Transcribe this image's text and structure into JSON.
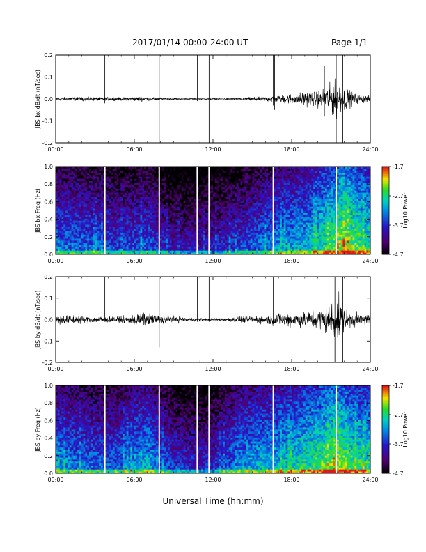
{
  "header": {
    "title": "2017/01/14  00:00-24:00 UT",
    "page": "Page 1/1"
  },
  "x_axis_label": "Universal Time (hh:mm)",
  "chart_data": [
    {
      "type": "line",
      "ylabel": "JBS bx dB/dt (nT/sec)",
      "xlim": [
        0,
        24
      ],
      "ylim": [
        -0.2,
        0.2
      ],
      "xticks": [
        {
          "v": 0,
          "t": "00:00"
        },
        {
          "v": 6,
          "t": "06:00"
        },
        {
          "v": 12,
          "t": "12:00"
        },
        {
          "v": 18,
          "t": "18:00"
        },
        {
          "v": 24,
          "t": "24:00"
        }
      ],
      "yticks": [
        {
          "v": -0.2,
          "t": "-0.2"
        },
        {
          "v": -0.1,
          "t": "-0.1"
        },
        {
          "v": 0,
          "t": "0.0"
        },
        {
          "v": 0.1,
          "t": "0.1"
        },
        {
          "v": 0.2,
          "t": "0.2"
        }
      ],
      "envelope": [
        [
          0,
          0.012
        ],
        [
          3,
          0.012
        ],
        [
          5,
          0.01
        ],
        [
          6.5,
          0.015
        ],
        [
          7.5,
          0.01
        ],
        [
          9,
          0.006
        ],
        [
          11,
          0.004
        ],
        [
          12.5,
          0.004
        ],
        [
          14,
          0.008
        ],
        [
          15,
          0.012
        ],
        [
          16,
          0.018
        ],
        [
          17,
          0.025
        ],
        [
          18,
          0.035
        ],
        [
          19,
          0.045
        ],
        [
          20,
          0.055
        ],
        [
          20.5,
          0.07
        ],
        [
          21,
          0.1
        ],
        [
          21.4,
          0.12
        ],
        [
          21.8,
          0.1
        ],
        [
          22.3,
          0.06
        ],
        [
          23,
          0.03
        ],
        [
          24,
          0.02
        ]
      ],
      "spikes": [
        [
          3.75,
          0.2,
          -0.02
        ],
        [
          7.9,
          0.2,
          -0.2
        ],
        [
          10.8,
          0.2,
          -0.01
        ],
        [
          11.7,
          0.2,
          -0.2
        ],
        [
          16.6,
          0.2,
          -0.03
        ],
        [
          16.7,
          0.2,
          -0.05
        ],
        [
          17.5,
          0.05,
          -0.12
        ],
        [
          20.5,
          0.15,
          -0.08
        ],
        [
          21.4,
          0.2,
          -0.2
        ],
        [
          21.9,
          0.2,
          -0.2
        ]
      ]
    },
    {
      "type": "heatmap",
      "ylabel": "JBS bx Freq (Hz)",
      "xlim": [
        0,
        24
      ],
      "ylim": [
        0,
        1
      ],
      "xticks": [
        {
          "v": 0,
          "t": "00:00"
        },
        {
          "v": 6,
          "t": "06:00"
        },
        {
          "v": 12,
          "t": "12:00"
        },
        {
          "v": 18,
          "t": "18:00"
        },
        {
          "v": 24,
          "t": "24:00"
        }
      ],
      "yticks": [
        {
          "v": 0,
          "t": "0.0"
        },
        {
          "v": 0.2,
          "t": "0.2"
        },
        {
          "v": 0.4,
          "t": "0.4"
        },
        {
          "v": 0.6,
          "t": "0.6"
        },
        {
          "v": 0.8,
          "t": "0.8"
        },
        {
          "v": 1.0,
          "t": "1.0"
        }
      ],
      "colorbar": {
        "label": "Log10 Power",
        "min": -4.7,
        "max": -1.7,
        "ticks": [
          {
            "v": -1.7,
            "t": "-1.7"
          },
          {
            "v": -2.7,
            "t": "-2.7"
          },
          {
            "v": -3.7,
            "t": "-3.7"
          },
          {
            "v": -4.7,
            "t": "-4.7"
          }
        ]
      },
      "gaps": [
        3.75,
        7.9,
        10.8,
        11.7,
        16.6,
        21.4
      ],
      "activity": [
        [
          0,
          0.5
        ],
        [
          3,
          0.45
        ],
        [
          5,
          0.4
        ],
        [
          7,
          0.45
        ],
        [
          9,
          0.3
        ],
        [
          11,
          0.3
        ],
        [
          13,
          0.35
        ],
        [
          15,
          0.45
        ],
        [
          17,
          0.55
        ],
        [
          19,
          0.6
        ],
        [
          21,
          0.75
        ],
        [
          22,
          0.85
        ],
        [
          24,
          0.7
        ]
      ]
    },
    {
      "type": "line",
      "ylabel": "JBS by dB/dt (nT/sec)",
      "xlim": [
        0,
        24
      ],
      "ylim": [
        -0.2,
        0.2
      ],
      "xticks": [
        {
          "v": 0,
          "t": "00:00"
        },
        {
          "v": 6,
          "t": "06:00"
        },
        {
          "v": 12,
          "t": "12:00"
        },
        {
          "v": 18,
          "t": "18:00"
        },
        {
          "v": 24,
          "t": "24:00"
        }
      ],
      "yticks": [
        {
          "v": -0.2,
          "t": "-0.2"
        },
        {
          "v": -0.1,
          "t": "-0.1"
        },
        {
          "v": 0,
          "t": "0.0"
        },
        {
          "v": 0.1,
          "t": "0.1"
        },
        {
          "v": 0.2,
          "t": "0.2"
        }
      ],
      "envelope": [
        [
          0,
          0.03
        ],
        [
          1,
          0.035
        ],
        [
          2,
          0.025
        ],
        [
          3,
          0.02
        ],
        [
          5,
          0.02
        ],
        [
          6.5,
          0.045
        ],
        [
          7,
          0.04
        ],
        [
          8,
          0.03
        ],
        [
          9,
          0.025
        ],
        [
          10,
          0.012
        ],
        [
          12,
          0.008
        ],
        [
          13,
          0.012
        ],
        [
          14,
          0.02
        ],
        [
          15,
          0.025
        ],
        [
          16,
          0.03
        ],
        [
          17,
          0.04
        ],
        [
          18,
          0.045
        ],
        [
          19,
          0.05
        ],
        [
          20,
          0.065
        ],
        [
          20.7,
          0.09
        ],
        [
          21,
          0.12
        ],
        [
          21.4,
          0.15
        ],
        [
          21.8,
          0.12
        ],
        [
          22.3,
          0.06
        ],
        [
          23,
          0.04
        ],
        [
          24,
          0.035
        ]
      ],
      "spikes": [
        [
          3.75,
          0.2,
          -0.01
        ],
        [
          7.9,
          0.2,
          -0.13
        ],
        [
          10.8,
          0.2,
          -0.01
        ],
        [
          11.7,
          0.2,
          -0.01
        ],
        [
          16.6,
          0.2,
          -0.02
        ],
        [
          21.3,
          0.2,
          -0.2
        ],
        [
          21.9,
          0.2,
          -0.2
        ]
      ]
    },
    {
      "type": "heatmap",
      "ylabel": "JBS by Freq (Hz)",
      "xlim": [
        0,
        24
      ],
      "ylim": [
        0,
        1
      ],
      "xticks": [
        {
          "v": 0,
          "t": "00:00"
        },
        {
          "v": 6,
          "t": "06:00"
        },
        {
          "v": 12,
          "t": "12:00"
        },
        {
          "v": 18,
          "t": "18:00"
        },
        {
          "v": 24,
          "t": "24:00"
        }
      ],
      "yticks": [
        {
          "v": 0,
          "t": "0.0"
        },
        {
          "v": 0.2,
          "t": "0.2"
        },
        {
          "v": 0.4,
          "t": "0.4"
        },
        {
          "v": 0.6,
          "t": "0.6"
        },
        {
          "v": 0.8,
          "t": "0.8"
        },
        {
          "v": 1.0,
          "t": "1.0"
        }
      ],
      "colorbar": {
        "label": "Log10 Power",
        "min": -4.7,
        "max": -1.7,
        "ticks": [
          {
            "v": -1.7,
            "t": "-1.7"
          },
          {
            "v": -2.7,
            "t": "-2.7"
          },
          {
            "v": -3.7,
            "t": "-3.7"
          },
          {
            "v": -4.7,
            "t": "-4.7"
          }
        ]
      },
      "gaps": [
        3.75,
        7.9,
        10.8,
        11.7,
        16.6,
        21.4
      ],
      "activity": [
        [
          0,
          0.55
        ],
        [
          2,
          0.5
        ],
        [
          4,
          0.45
        ],
        [
          6,
          0.55
        ],
        [
          7,
          0.6
        ],
        [
          8,
          0.45
        ],
        [
          10,
          0.35
        ],
        [
          12,
          0.35
        ],
        [
          14,
          0.55
        ],
        [
          16,
          0.6
        ],
        [
          18,
          0.65
        ],
        [
          20,
          0.75
        ],
        [
          21.5,
          0.85
        ],
        [
          22.5,
          0.75
        ],
        [
          24,
          0.7
        ]
      ]
    }
  ]
}
